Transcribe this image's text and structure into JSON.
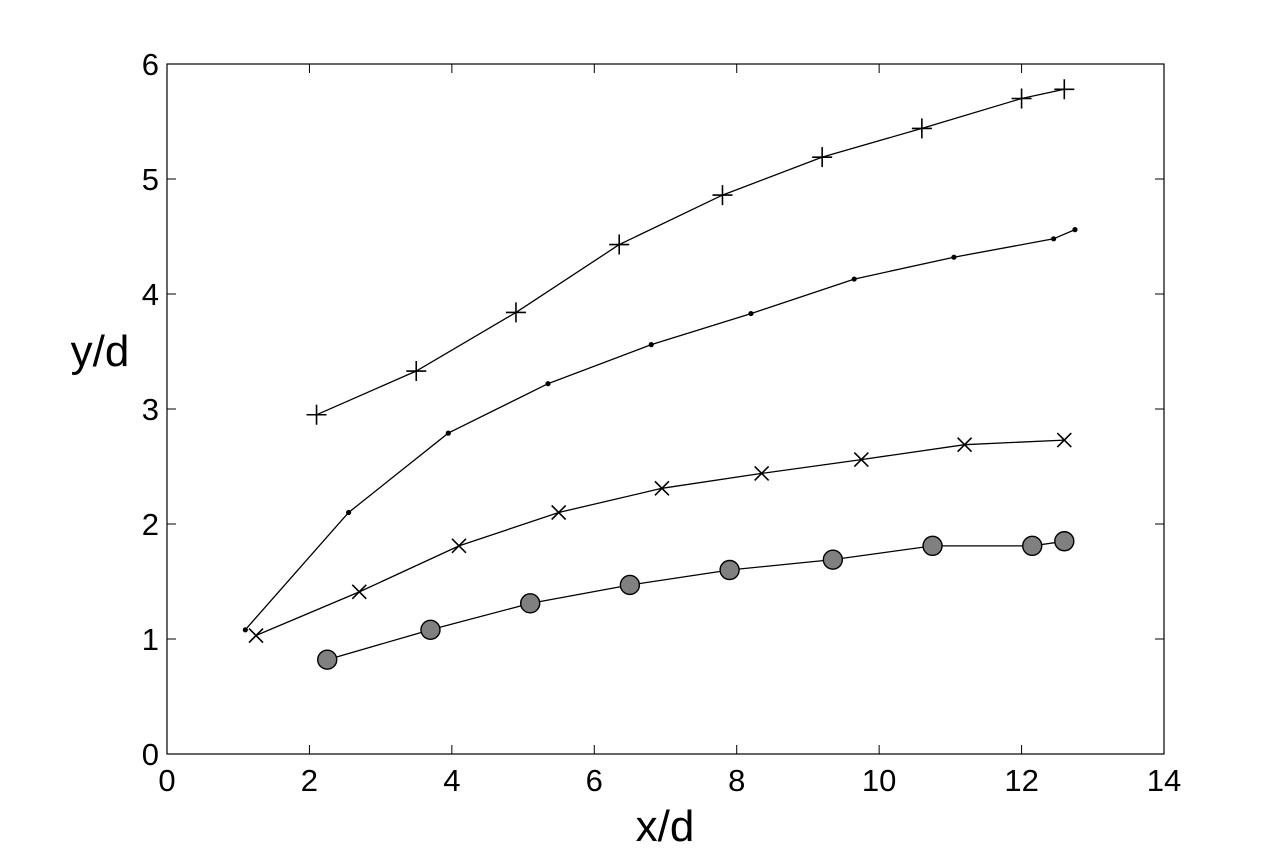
{
  "chart_data": {
    "type": "line",
    "title": "",
    "xlabel": "x/d",
    "ylabel": "y/d",
    "xlim": [
      0,
      14
    ],
    "ylim": [
      0,
      6
    ],
    "xticks": [
      0,
      2,
      4,
      6,
      8,
      10,
      12,
      14
    ],
    "yticks": [
      0,
      1,
      2,
      3,
      4,
      5,
      6
    ],
    "grid": false,
    "legend": "none",
    "series": [
      {
        "marker": "plus",
        "color": "#000000",
        "x": [
          2.1,
          3.5,
          4.9,
          6.35,
          7.8,
          9.2,
          10.6,
          12.0,
          12.6
        ],
        "y": [
          2.95,
          3.33,
          3.84,
          4.43,
          4.86,
          5.19,
          5.44,
          5.7,
          5.78
        ]
      },
      {
        "marker": "dot",
        "color": "#000000",
        "x": [
          1.1,
          2.55,
          3.95,
          5.35,
          6.8,
          8.2,
          9.65,
          11.05,
          12.45,
          12.75
        ],
        "y": [
          1.08,
          2.1,
          2.79,
          3.22,
          3.56,
          3.83,
          4.13,
          4.32,
          4.48,
          4.56
        ]
      },
      {
        "marker": "x",
        "color": "#000000",
        "x": [
          1.25,
          2.7,
          4.1,
          5.5,
          6.95,
          8.35,
          9.75,
          11.2,
          12.6
        ],
        "y": [
          1.03,
          1.41,
          1.81,
          2.1,
          2.31,
          2.44,
          2.56,
          2.69,
          2.73
        ]
      },
      {
        "marker": "circle",
        "color": "#808080",
        "x": [
          2.25,
          3.7,
          5.1,
          6.5,
          7.9,
          9.35,
          10.75,
          12.15,
          12.6
        ],
        "y": [
          0.82,
          1.08,
          1.31,
          1.47,
          1.6,
          1.69,
          1.81,
          1.81,
          1.85
        ]
      }
    ]
  }
}
